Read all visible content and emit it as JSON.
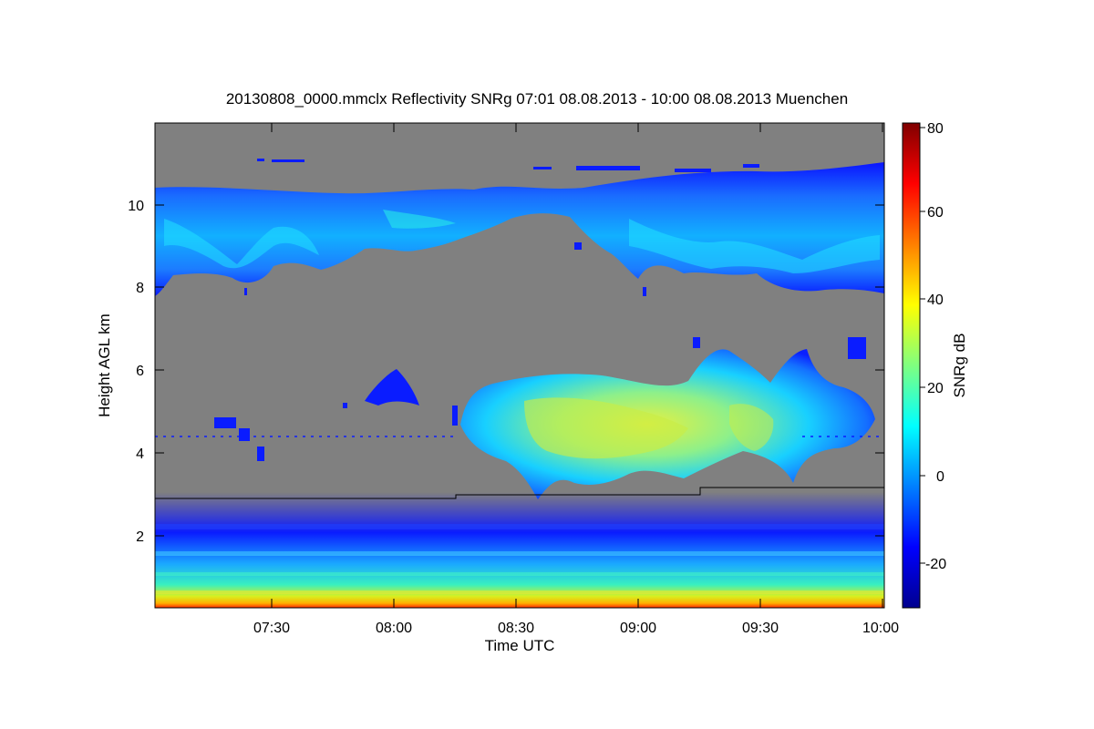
{
  "chart_data": {
    "type": "heatmap",
    "title": "20130808_0000.mmclx Reflectivity SNRg   07:01 08.08.2013 - 10:00 08.08.2013 Muenchen",
    "xlabel": "Time UTC",
    "ylabel": "Height AGL km",
    "x_ticks": [
      "07:30",
      "08:00",
      "08:30",
      "09:00",
      "09:30",
      "10:00"
    ],
    "y_ticks": [
      "2",
      "4",
      "6",
      "8",
      "10"
    ],
    "xlim": [
      "07:01",
      "10:00"
    ],
    "ylim_km": [
      0.25,
      12.0
    ],
    "colorbar": {
      "label": "SNRg dB",
      "range": [
        -30,
        80
      ],
      "ticks": [
        "-20",
        "0",
        "20",
        "40",
        "60",
        "80"
      ],
      "colormap": "jet"
    },
    "missing_color": "#808080",
    "boundary_line_km": [
      {
        "from": "07:01",
        "to": "08:15",
        "height": 2.9
      },
      {
        "from": "08:15",
        "to": "09:15",
        "height": 3.0
      },
      {
        "from": "09:15",
        "to": "10:00",
        "height": 3.15
      }
    ],
    "regions": [
      {
        "name": "upper cloud",
        "from": "07:01",
        "to": "10:00",
        "base_km": 8.0,
        "top_km": 10.6,
        "snr_db": [
          -20,
          5
        ]
      },
      {
        "name": "mid-level cloud",
        "from": "08:17",
        "to": "09:50",
        "base_km": 3.2,
        "top_km": 6.5,
        "snr_db": [
          -15,
          35
        ]
      },
      {
        "name": "boundary layer clutter",
        "from": "07:01",
        "to": "10:00",
        "base_km": 0.25,
        "top_km": 3.0,
        "snr_db": [
          -25,
          55
        ]
      }
    ]
  }
}
